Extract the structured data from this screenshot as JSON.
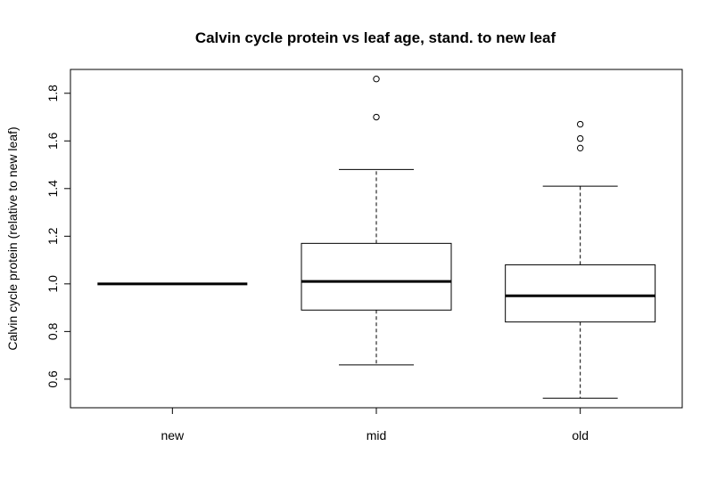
{
  "chart_data": {
    "type": "boxplot",
    "title": "Calvin cycle protein vs leaf age, stand. to new leaf",
    "xlabel": "",
    "ylabel": "Calvin cycle protein (relative to new leaf)",
    "ylim": [
      0.48,
      1.9
    ],
    "yticks": [
      0.6,
      0.8,
      1.0,
      1.2,
      1.4,
      1.6,
      1.8
    ],
    "ytick_labels": [
      "0.6",
      "0.8",
      "1.0",
      "1.2",
      "1.4",
      "1.6",
      "1.8"
    ],
    "categories": [
      "new",
      "mid",
      "old"
    ],
    "grid": false,
    "boxes": [
      {
        "category": "new",
        "whisker_low": 1.0,
        "q1": 1.0,
        "median": 1.0,
        "q3": 1.0,
        "whisker_high": 1.0,
        "outliers": []
      },
      {
        "category": "mid",
        "whisker_low": 0.66,
        "q1": 0.89,
        "median": 1.01,
        "q3": 1.17,
        "whisker_high": 1.48,
        "outliers": [
          1.7,
          1.86
        ]
      },
      {
        "category": "old",
        "whisker_low": 0.52,
        "q1": 0.84,
        "median": 0.95,
        "q3": 1.08,
        "whisker_high": 1.41,
        "outliers": [
          1.57,
          1.61,
          1.67
        ]
      }
    ]
  }
}
